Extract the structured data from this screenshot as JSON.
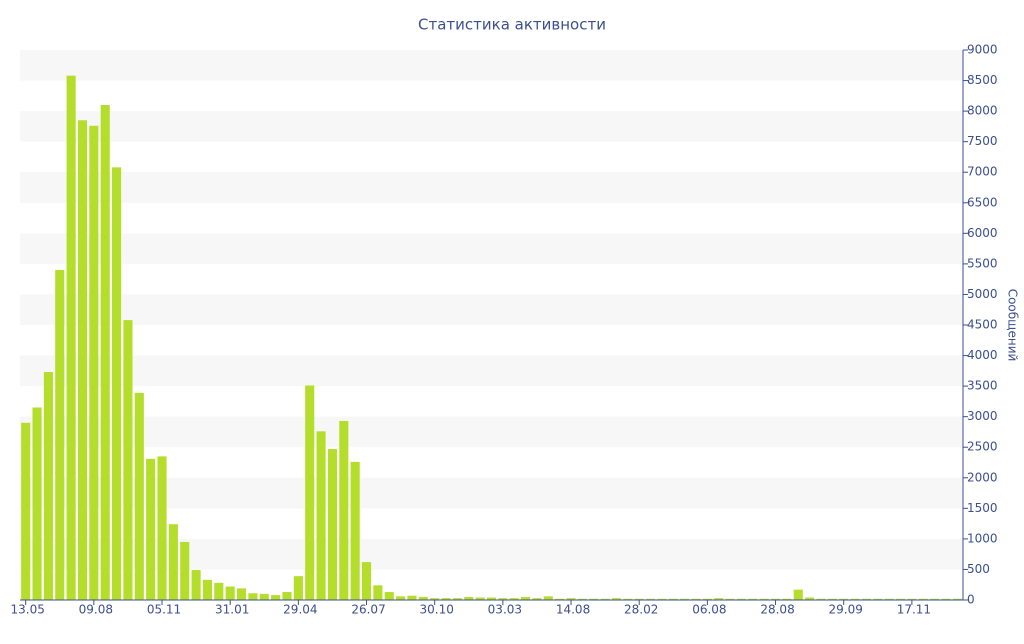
{
  "chart_data": {
    "type": "bar",
    "title": "Статистика активности",
    "y_label": "Сообщений",
    "categories": [
      "13.05",
      null,
      null,
      null,
      null,
      null,
      "09.08",
      null,
      null,
      null,
      null,
      null,
      "05.11",
      null,
      null,
      null,
      null,
      null,
      "31.01",
      null,
      null,
      null,
      null,
      null,
      "29.04",
      null,
      null,
      null,
      null,
      null,
      "26.07",
      null,
      null,
      null,
      null,
      null,
      "30.10",
      null,
      null,
      null,
      null,
      null,
      "03.03",
      null,
      null,
      null,
      null,
      null,
      "14.08",
      null,
      null,
      null,
      null,
      null,
      "28.02",
      null,
      null,
      null,
      null,
      null,
      "06.08",
      null,
      null,
      null,
      null,
      null,
      "28.08",
      null,
      null,
      null,
      null,
      null,
      "29.09",
      null,
      null,
      null,
      null,
      null,
      "17.11",
      null,
      null,
      null,
      null
    ],
    "values": [
      2900,
      3150,
      3730,
      5400,
      8580,
      7850,
      7760,
      8100,
      7080,
      4580,
      3390,
      2310,
      2350,
      1240,
      950,
      490,
      330,
      280,
      220,
      190,
      110,
      100,
      80,
      130,
      390,
      3510,
      2760,
      2470,
      2930,
      2260,
      620,
      240,
      130,
      60,
      70,
      50,
      30,
      30,
      30,
      50,
      40,
      40,
      30,
      30,
      50,
      30,
      60,
      20,
      30,
      20,
      20,
      20,
      30,
      20,
      20,
      20,
      20,
      20,
      20,
      20,
      20,
      30,
      20,
      20,
      20,
      20,
      20,
      20,
      170,
      40,
      20,
      20,
      20,
      20,
      20,
      20,
      20,
      20,
      20,
      20,
      20,
      20,
      20
    ],
    "color": "#b5dd2b",
    "ylim": [
      0,
      9000
    ],
    "yticks": [
      0,
      500,
      1000,
      1500,
      2000,
      2500,
      3000,
      3500,
      4000,
      4500,
      5000,
      5500,
      6000,
      6500,
      7000,
      7500,
      8000,
      8500,
      9000
    ],
    "grid": true
  }
}
